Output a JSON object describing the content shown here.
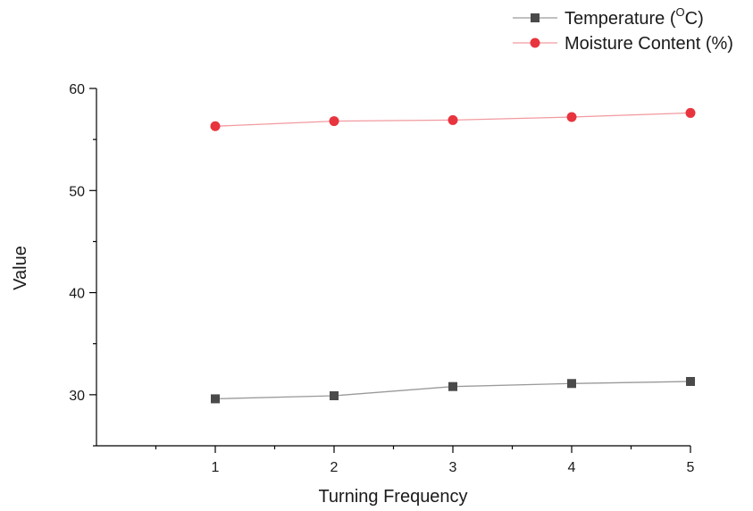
{
  "chart_data": {
    "type": "line",
    "title": "",
    "xlabel": "Turning Frequency",
    "ylabel": "Value",
    "x": [
      1,
      2,
      3,
      4,
      5
    ],
    "x_ticks": [
      1,
      2,
      3,
      4,
      5
    ],
    "y_ticks": [
      30,
      40,
      50,
      60
    ],
    "xlim": [
      0,
      5
    ],
    "ylim": [
      25,
      60
    ],
    "grid": false,
    "legend_position": "top-right",
    "series": [
      {
        "name": "Temperature (",
        "name_superscript": "O",
        "name_suffix": "C)",
        "marker": "square",
        "color": "#4a4a4a",
        "line_color": "#9a9a9a",
        "values": [
          29.6,
          29.9,
          30.8,
          31.1,
          31.3
        ]
      },
      {
        "name": "Moisture Content (%)",
        "marker": "circle",
        "color": "#e8343e",
        "line_color": "#f29aa0",
        "values": [
          56.3,
          56.8,
          56.9,
          57.2,
          57.6
        ]
      }
    ]
  }
}
